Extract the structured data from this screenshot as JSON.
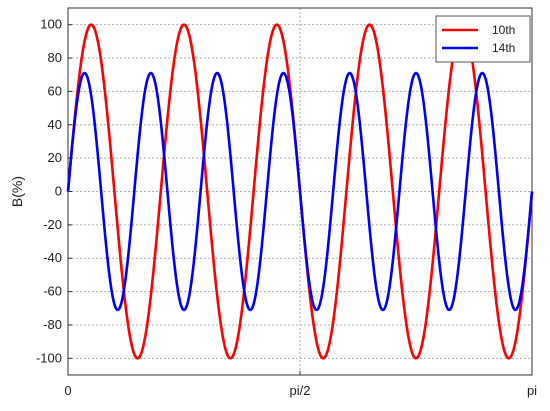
{
  "chart_data": {
    "type": "line",
    "xlabel": "",
    "ylabel": "B(%)",
    "xlim": [
      0,
      3.14159265
    ],
    "ylim": [
      -110,
      110
    ],
    "x_ticks": [
      {
        "value": 0,
        "label": "0"
      },
      {
        "value": 1.5707963,
        "label": "pi/2"
      },
      {
        "value": 3.14159265,
        "label": "pi"
      }
    ],
    "y_ticks": [
      100,
      80,
      60,
      40,
      20,
      0,
      -20,
      -40,
      -60,
      -80,
      -100
    ],
    "grid": true,
    "legend_position": "top-right",
    "series": [
      {
        "name": "10th",
        "color": "#ff0000",
        "harmonic": 10,
        "amplitude": 100
      },
      {
        "name": "14th",
        "color": "#0000ff",
        "harmonic": 14,
        "amplitude": 71
      }
    ]
  }
}
